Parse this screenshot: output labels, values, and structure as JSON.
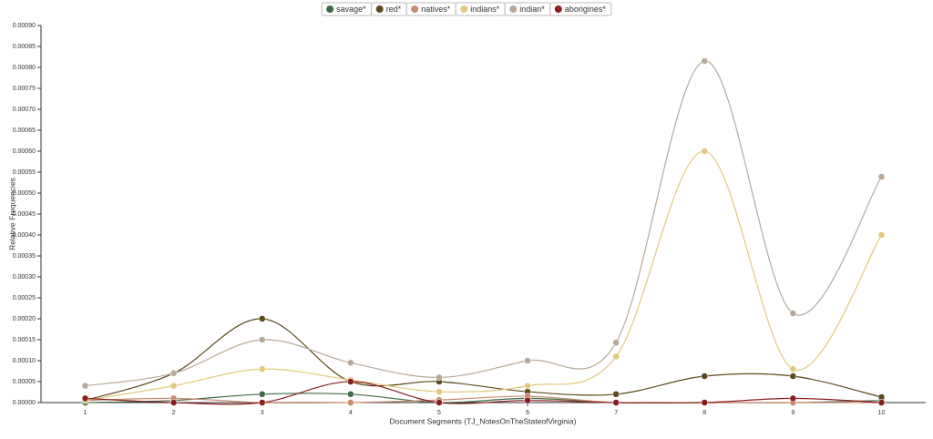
{
  "chart_data": {
    "type": "line",
    "x_label": "Document Segments (TJ_NotesOnTheStateofVirginia)",
    "y_label": "Relative Frequencies",
    "categories": [
      "1",
      "2",
      "3",
      "4",
      "5",
      "6",
      "7",
      "8",
      "9",
      "10"
    ],
    "ylim": [
      0,
      0.0009
    ],
    "yticks": [
      {
        "value": 0,
        "label": "0.00000"
      },
      {
        "value": 5e-05,
        "label": "0.00005"
      },
      {
        "value": 0.0001,
        "label": "0.00010"
      },
      {
        "value": 0.00015,
        "label": "0.00015"
      },
      {
        "value": 0.0002,
        "label": "0.00020"
      },
      {
        "value": 0.00025,
        "label": "0.00025"
      },
      {
        "value": 0.0003,
        "label": "0.00030"
      },
      {
        "value": 0.00035,
        "label": "0.00035"
      },
      {
        "value": 0.0004,
        "label": "0.00040"
      },
      {
        "value": 0.00045,
        "label": "0.00045"
      },
      {
        "value": 0.0005,
        "label": "0.00050"
      },
      {
        "value": 0.00055,
        "label": "0.00055"
      },
      {
        "value": 0.0006,
        "label": "0.00060"
      },
      {
        "value": 0.00065,
        "label": "0.00065"
      },
      {
        "value": 0.0007,
        "label": "0.00070"
      },
      {
        "value": 0.00075,
        "label": "0.00075"
      },
      {
        "value": 0.0008,
        "label": "0.00080"
      },
      {
        "value": 0.00085,
        "label": "0.00085"
      },
      {
        "value": 0.0009,
        "label": "0.00090"
      }
    ],
    "series": [
      {
        "name": "savage*",
        "color": "#3d6b45",
        "values": [
          0,
          5e-06,
          2e-05,
          2e-05,
          0,
          1e-05,
          0,
          0,
          0,
          5e-06
        ]
      },
      {
        "name": "red*",
        "color": "#5c4a1e",
        "values": [
          5e-06,
          7e-05,
          0.0002,
          5e-05,
          5e-05,
          2.6e-05,
          2e-05,
          6.3e-05,
          6.3e-05,
          1.3e-05
        ]
      },
      {
        "name": "natives*",
        "color": "#c98a70",
        "values": [
          5e-06,
          1e-05,
          0,
          0,
          6e-06,
          1.5e-05,
          0,
          0,
          0,
          0
        ]
      },
      {
        "name": "indians*",
        "color": "#e2c87a",
        "values": [
          5e-06,
          4e-05,
          8e-05,
          5.4e-05,
          2.6e-05,
          4e-05,
          0.00011,
          0.0006,
          8e-05,
          0.0004
        ]
      },
      {
        "name": "indian*",
        "color": "#b8a898",
        "values": [
          4e-05,
          7e-05,
          0.00015,
          9.5e-05,
          6e-05,
          0.0001,
          0.000143,
          0.000815,
          0.000213,
          0.000539
        ]
      },
      {
        "name": "aborigines*",
        "color": "#8b1e1e",
        "values": [
          1e-05,
          0,
          0,
          5e-05,
          0,
          5e-06,
          0,
          0,
          1e-05,
          0
        ]
      }
    ]
  }
}
